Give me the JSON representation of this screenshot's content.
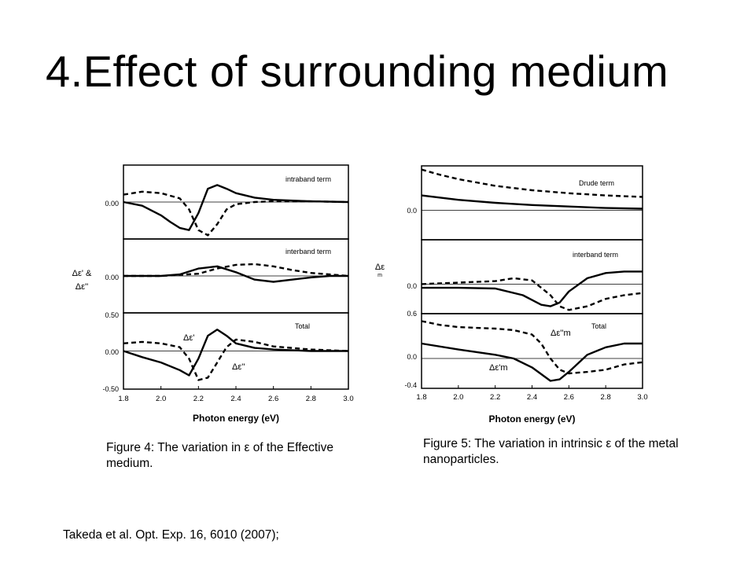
{
  "title": "4.Effect of surrounding medium",
  "captions": {
    "figure4": "Figure 4: The variation in ε of the Effective medium.",
    "figure5": "Figure 5: The variation in intrinsic ε of the metal nanoparticles."
  },
  "citation": "Takeda et al. Opt. Exp. 16, 6010 (2007);",
  "chart_data": [
    {
      "type": "line",
      "figure": "Figure 4",
      "xlabel": "Photon energy (eV)",
      "ylabel_lines": [
        "Δε' &",
        "Δε''"
      ],
      "xlim": [
        1.8,
        3.0
      ],
      "xticks": [
        "1.8",
        "2.0",
        "2.2",
        "2.4",
        "2.6",
        "2.8",
        "3.0"
      ],
      "line_styles": {
        "solid": "Δε'",
        "dashed": "Δε''"
      },
      "panels": [
        {
          "label": "intraband term",
          "ylim": [
            -0.5,
            0.5
          ],
          "yticks": [
            "0.00"
          ],
          "series": [
            {
              "style": "solid",
              "x": [
                1.8,
                1.9,
                2.0,
                2.05,
                2.1,
                2.15,
                2.2,
                2.25,
                2.3,
                2.35,
                2.4,
                2.5,
                2.6,
                2.8,
                3.0
              ],
              "y": [
                0.0,
                -0.05,
                -0.18,
                -0.27,
                -0.35,
                -0.38,
                -0.15,
                0.18,
                0.23,
                0.18,
                0.12,
                0.06,
                0.03,
                0.01,
                0.0
              ]
            },
            {
              "style": "dashed",
              "x": [
                1.8,
                1.9,
                2.0,
                2.1,
                2.15,
                2.2,
                2.25,
                2.3,
                2.35,
                2.4,
                2.5,
                2.6,
                2.8,
                3.0
              ],
              "y": [
                0.1,
                0.14,
                0.12,
                0.05,
                -0.1,
                -0.38,
                -0.45,
                -0.3,
                -0.1,
                -0.03,
                0.0,
                0.01,
                0.01,
                0.0
              ]
            }
          ]
        },
        {
          "label": "interband term",
          "ylim": [
            -0.5,
            0.5
          ],
          "yticks": [
            "0.00"
          ],
          "series": [
            {
              "style": "solid",
              "x": [
                1.8,
                2.0,
                2.1,
                2.2,
                2.3,
                2.4,
                2.5,
                2.6,
                2.7,
                2.8,
                2.9,
                3.0
              ],
              "y": [
                0.0,
                0.0,
                0.02,
                0.1,
                0.13,
                0.05,
                -0.05,
                -0.08,
                -0.05,
                -0.02,
                0.0,
                0.0
              ]
            },
            {
              "style": "dashed",
              "x": [
                1.8,
                2.0,
                2.2,
                2.3,
                2.4,
                2.5,
                2.6,
                2.7,
                2.8,
                2.9,
                3.0
              ],
              "y": [
                0.0,
                0.0,
                0.03,
                0.1,
                0.15,
                0.16,
                0.13,
                0.08,
                0.04,
                0.02,
                0.0
              ]
            }
          ]
        },
        {
          "label": "Total",
          "ylim": [
            -0.5,
            0.5
          ],
          "yticks": [
            "0.50",
            "0.00",
            "-0.50"
          ],
          "series_labels": [
            "Δε'",
            "Δε''"
          ],
          "series": [
            {
              "style": "solid",
              "x": [
                1.8,
                1.9,
                2.0,
                2.1,
                2.15,
                2.2,
                2.25,
                2.3,
                2.35,
                2.4,
                2.5,
                2.6,
                2.8,
                3.0
              ],
              "y": [
                0.0,
                -0.08,
                -0.15,
                -0.25,
                -0.32,
                -0.1,
                0.2,
                0.28,
                0.2,
                0.1,
                0.04,
                0.02,
                0.0,
                0.0
              ]
            },
            {
              "style": "dashed",
              "x": [
                1.8,
                1.9,
                2.0,
                2.1,
                2.15,
                2.2,
                2.25,
                2.3,
                2.35,
                2.4,
                2.5,
                2.6,
                2.8,
                3.0
              ],
              "y": [
                0.1,
                0.12,
                0.1,
                0.05,
                -0.1,
                -0.38,
                -0.35,
                -0.15,
                0.05,
                0.15,
                0.12,
                0.06,
                0.02,
                0.0
              ]
            }
          ]
        }
      ]
    },
    {
      "type": "line",
      "figure": "Figure 5",
      "xlabel": "Photon energy (eV)",
      "ylabel_lines": [
        "Δε",
        "m"
      ],
      "xlim": [
        1.8,
        3.0
      ],
      "xticks": [
        "1.8",
        "2.0",
        "2.2",
        "2.4",
        "2.6",
        "2.8",
        "3.0"
      ],
      "line_styles": {
        "solid": "Δε'm",
        "dashed": "Δε''m"
      },
      "panels": [
        {
          "label": "Drude term",
          "ylim": [
            -0.4,
            0.6
          ],
          "yticks": [
            "0.0"
          ],
          "series": [
            {
              "style": "solid",
              "x": [
                1.8,
                2.0,
                2.2,
                2.4,
                2.6,
                2.8,
                3.0
              ],
              "y": [
                0.2,
                0.14,
                0.1,
                0.07,
                0.05,
                0.03,
                0.02
              ]
            },
            {
              "style": "dashed",
              "x": [
                1.8,
                1.9,
                2.0,
                2.2,
                2.4,
                2.6,
                2.8,
                3.0
              ],
              "y": [
                0.55,
                0.48,
                0.42,
                0.33,
                0.27,
                0.23,
                0.2,
                0.18
              ]
            }
          ]
        },
        {
          "label": "interband term",
          "ylim": [
            -0.4,
            0.6
          ],
          "yticks": [
            "0.0"
          ],
          "series": [
            {
              "style": "solid",
              "x": [
                1.8,
                2.0,
                2.2,
                2.35,
                2.45,
                2.5,
                2.55,
                2.6,
                2.7,
                2.8,
                2.9,
                3.0
              ],
              "y": [
                -0.05,
                -0.05,
                -0.06,
                -0.15,
                -0.28,
                -0.3,
                -0.25,
                -0.1,
                0.08,
                0.15,
                0.17,
                0.17
              ]
            },
            {
              "style": "dashed",
              "x": [
                1.8,
                2.0,
                2.2,
                2.3,
                2.4,
                2.5,
                2.55,
                2.6,
                2.7,
                2.8,
                2.9,
                3.0
              ],
              "y": [
                0.0,
                0.02,
                0.04,
                0.08,
                0.05,
                -0.15,
                -0.3,
                -0.35,
                -0.3,
                -0.2,
                -0.15,
                -0.12
              ]
            }
          ]
        },
        {
          "label": "Total",
          "ylim": [
            -0.4,
            0.6
          ],
          "yticks": [
            "0.6",
            "0.0",
            "-0.4"
          ],
          "series_labels": [
            "Δε''m",
            "Δε'm"
          ],
          "series": [
            {
              "style": "solid",
              "x": [
                1.8,
                2.0,
                2.2,
                2.3,
                2.4,
                2.5,
                2.55,
                2.6,
                2.7,
                2.8,
                2.9,
                3.0
              ],
              "y": [
                0.2,
                0.12,
                0.05,
                0.0,
                -0.12,
                -0.3,
                -0.28,
                -0.18,
                0.05,
                0.15,
                0.2,
                0.2
              ]
            },
            {
              "style": "dashed",
              "x": [
                1.8,
                1.9,
                2.0,
                2.2,
                2.3,
                2.4,
                2.45,
                2.5,
                2.55,
                2.6,
                2.7,
                2.8,
                2.9,
                3.0
              ],
              "y": [
                0.5,
                0.45,
                0.42,
                0.4,
                0.38,
                0.32,
                0.2,
                0.0,
                -0.15,
                -0.2,
                -0.18,
                -0.15,
                -0.08,
                -0.05
              ]
            }
          ]
        }
      ]
    }
  ]
}
